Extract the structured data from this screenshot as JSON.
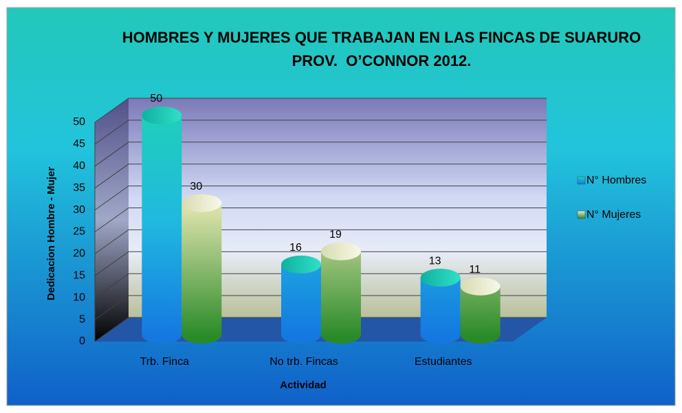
{
  "chart_data": {
    "type": "bar",
    "title": "HOMBRES Y MUJERES QUE TRABAJAN EN LAS FINCAS DE SUARURO PROV.  O’CONNOR 2012.",
    "x_label": "Actividad",
    "y_label": "Dedicacion Hombre - Mujer",
    "categories": [
      "Trb. Finca",
      "No trb. Fincas",
      "Estudiantes"
    ],
    "series": [
      {
        "name": "N° Hombres",
        "color": "#1a8fe0",
        "values": [
          50,
          16,
          13
        ]
      },
      {
        "name": "N° Mujeres",
        "color": "#3a9a30",
        "values": [
          30,
          19,
          11
        ]
      }
    ],
    "ylim": [
      0,
      50
    ],
    "yticks": [
      0,
      5,
      10,
      15,
      20,
      25,
      30,
      35,
      40,
      45,
      50
    ],
    "grid": true,
    "legend": "right"
  }
}
